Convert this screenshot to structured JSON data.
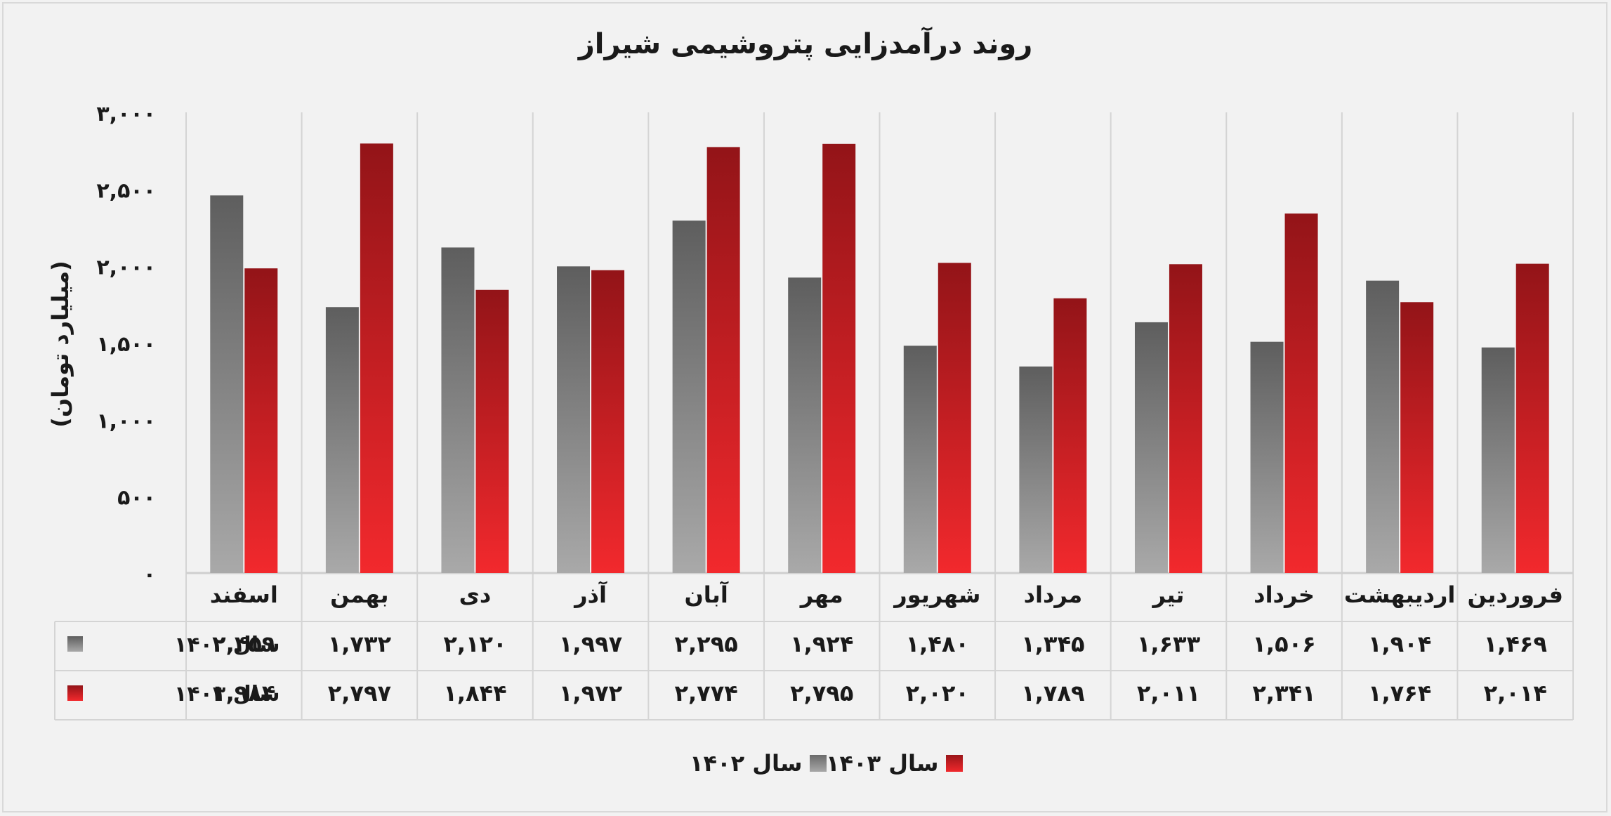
{
  "chart_data": {
    "type": "bar",
    "title": "روند درآمدزایی پتروشیمی شیراز",
    "ylabel": "(میلیارد تومان)",
    "ylim": [
      0,
      3000
    ],
    "yticks": [
      0,
      500,
      1000,
      1500,
      2000,
      2500,
      3000
    ],
    "ytick_labels": [
      "۰",
      "۵۰۰",
      "۱,۰۰۰",
      "۱,۵۰۰",
      "۲,۰۰۰",
      "۲,۵۰۰",
      "۳,۰۰۰"
    ],
    "categories": [
      "فروردین",
      "اردیبهشت",
      "خرداد",
      "تیر",
      "مرداد",
      "شهریور",
      "مهر",
      "آبان",
      "آذر",
      "دی",
      "بهمن",
      "اسفند"
    ],
    "series": [
      {
        "name": "سال ۱۴۰۲",
        "color": "#7a7a7a",
        "values": [
          1469,
          1904,
          1506,
          1633,
          1345,
          1480,
          1924,
          2295,
          1997,
          2120,
          1732,
          2459
        ],
        "value_labels": [
          "۱,۴۶۹",
          "۱,۹۰۴",
          "۱,۵۰۶",
          "۱,۶۳۳",
          "۱,۳۴۵",
          "۱,۴۸۰",
          "۱,۹۲۴",
          "۲,۲۹۵",
          "۱,۹۹۷",
          "۲,۱۲۰",
          "۱,۷۳۲",
          "۲,۴۵۹"
        ]
      },
      {
        "name": "سال ۱۴۰۳",
        "color": "#c81e22",
        "values": [
          2014,
          1764,
          2341,
          2011,
          1789,
          2020,
          2795,
          2774,
          1972,
          1844,
          2797,
          1984
        ],
        "value_labels": [
          "۲,۰۱۴",
          "۱,۷۶۴",
          "۲,۳۴۱",
          "۲,۰۱۱",
          "۱,۷۸۹",
          "۲,۰۲۰",
          "۲,۷۹۵",
          "۲,۷۷۴",
          "۱,۹۷۲",
          "۱,۸۴۴",
          "۲,۷۹۷",
          "۱,۹۸۴"
        ]
      }
    ],
    "legend_position": "bottom",
    "data_table": true,
    "grid": "vertical"
  }
}
